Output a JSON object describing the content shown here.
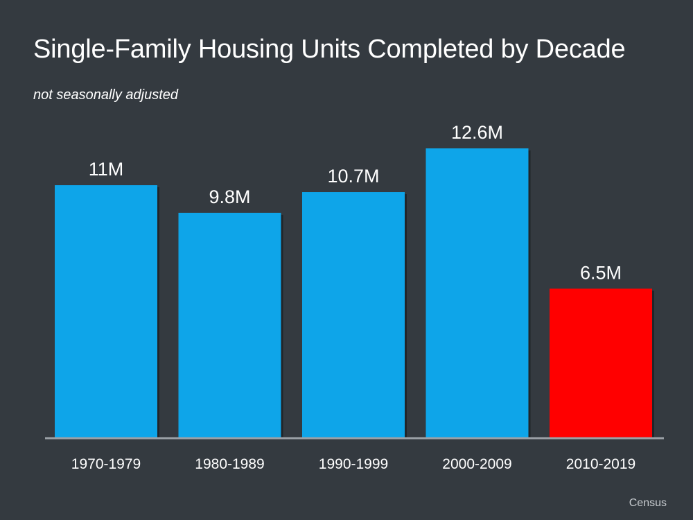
{
  "title": "Single-Family Housing Units Completed by Decade",
  "subtitle": "not seasonally adjusted",
  "source": "Census",
  "colors": {
    "background": "#343a40",
    "bar_default": "#0ea5e9",
    "bar_highlight": "#ff0000",
    "axis": "#9aa0a6",
    "text": "#ffffff"
  },
  "chart_data": {
    "type": "bar",
    "title": "Single-Family Housing Units Completed by Decade",
    "subtitle": "not seasonally adjusted",
    "xlabel": "",
    "ylabel": "",
    "categories": [
      "1970-1979",
      "1980-1989",
      "1990-1999",
      "2000-2009",
      "2010-2019"
    ],
    "values": [
      11,
      9.8,
      10.7,
      12.6,
      6.5
    ],
    "value_labels": [
      "11M",
      "9.8M",
      "10.7M",
      "12.6M",
      "6.5M"
    ],
    "bar_colors": [
      "#0ea5e9",
      "#0ea5e9",
      "#0ea5e9",
      "#0ea5e9",
      "#ff0000"
    ],
    "ylim": [
      0,
      12.6
    ],
    "grid": false,
    "legend": "none"
  }
}
